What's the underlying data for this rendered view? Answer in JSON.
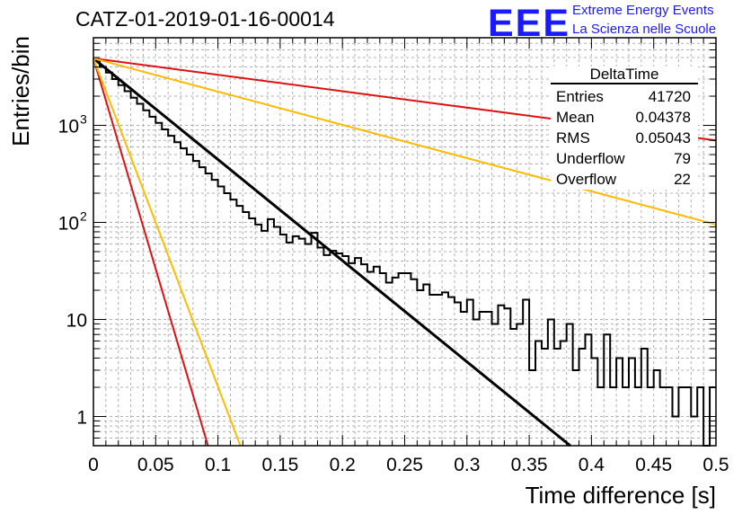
{
  "header": {
    "title": "CATZ-01-2019-01-16-00014",
    "logo_text": "EEE",
    "logo_line1": "Extreme Energy Events",
    "logo_line2": "La Scienza nelle Scuole"
  },
  "stats_box": {
    "title": "DeltaTime",
    "rows": [
      {
        "label": "Entries",
        "value": "41720"
      },
      {
        "label": "Mean",
        "value": "0.04378"
      },
      {
        "label": "RMS",
        "value": "0.05043"
      },
      {
        "label": "Underflow",
        "value": "79"
      },
      {
        "label": "Overflow",
        "value": "22"
      }
    ]
  },
  "colors": {
    "histogram": "#000000",
    "fit": "#000000",
    "red_lines": "#dd1111",
    "orange_lines": "#ffbb00",
    "grid": "#b0b0b0"
  },
  "chart_data": {
    "type": "line",
    "title": "CATZ-01-2019-01-16-00014",
    "xlabel": "Time difference [s]",
    "ylabel": "Entries/bin",
    "xlim": [
      0,
      0.5
    ],
    "ylim": [
      0.5,
      8000
    ],
    "y_scale": "log",
    "grid": true,
    "x_ticks": [
      {
        "value": 0,
        "label": "0"
      },
      {
        "value": 0.05,
        "label": "0.05"
      },
      {
        "value": 0.1,
        "label": "0.1"
      },
      {
        "value": 0.15,
        "label": "0.15"
      },
      {
        "value": 0.2,
        "label": "0.2"
      },
      {
        "value": 0.25,
        "label": "0.25"
      },
      {
        "value": 0.3,
        "label": "0.3"
      },
      {
        "value": 0.35,
        "label": "0.35"
      },
      {
        "value": 0.4,
        "label": "0.4"
      },
      {
        "value": 0.45,
        "label": "0.45"
      },
      {
        "value": 0.5,
        "label": "0.5"
      }
    ],
    "y_ticks": [
      {
        "value": 1,
        "label": "1"
      },
      {
        "value": 10,
        "label": "10"
      },
      {
        "value": 100,
        "label": "10",
        "sup": "2"
      },
      {
        "value": 1000,
        "label": "10",
        "sup": "3"
      }
    ],
    "series": [
      {
        "kind": "histogram",
        "bin_width": 0.005,
        "x_start": 0,
        "values": [
          4700,
          4000,
          3500,
          3000,
          2600,
          2250,
          1930,
          1670,
          1430,
          1230,
          1060,
          910,
          780,
          670,
          580,
          500,
          430,
          370,
          320,
          275,
          235,
          200,
          172,
          148,
          128,
          110,
          95,
          82,
          108,
          90,
          75,
          62,
          72,
          68,
          60,
          78,
          55,
          46,
          51,
          48,
          45,
          38,
          43,
          37,
          31,
          35,
          30,
          24,
          27,
          30,
          30,
          26,
          20,
          23,
          18,
          18,
          19,
          17,
          15,
          12,
          16,
          10,
          12,
          12,
          9,
          14,
          13,
          8,
          9,
          16,
          3,
          6,
          5,
          10,
          5,
          6,
          9,
          3,
          5,
          7,
          4,
          2,
          7,
          2,
          4,
          2,
          4,
          2,
          5,
          2,
          3,
          2,
          2,
          1,
          2,
          2,
          1,
          2,
          0,
          2
        ]
      },
      {
        "kind": "line",
        "x": [
          0,
          0.383
        ],
        "y": [
          4900,
          0.5
        ],
        "color": "#000000"
      },
      {
        "kind": "line",
        "x": [
          0,
          0.5
        ],
        "y": [
          4900,
          700
        ],
        "color": "#dd1111"
      },
      {
        "kind": "line",
        "x": [
          0,
          0.5
        ],
        "y": [
          4900,
          95
        ],
        "color": "#ffbb00"
      },
      {
        "kind": "line",
        "x": [
          0,
          0.092
        ],
        "y": [
          4900,
          0.5
        ],
        "color": "#dd1111"
      },
      {
        "kind": "line",
        "x": [
          0,
          0.118
        ],
        "y": [
          4900,
          0.5
        ],
        "color": "#ffbb00"
      }
    ]
  }
}
